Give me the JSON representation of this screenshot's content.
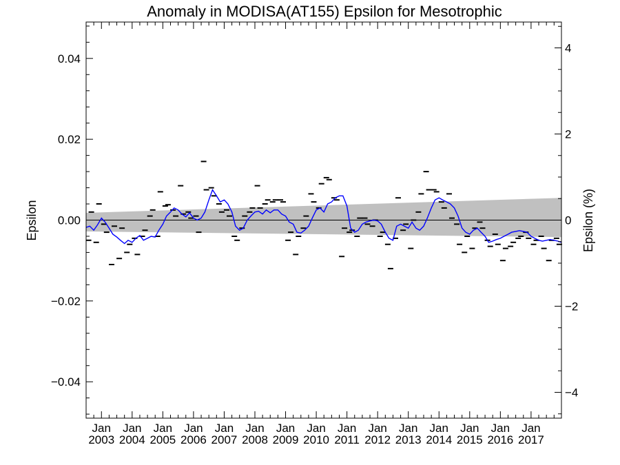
{
  "chart_data": {
    "type": "line",
    "title": "Anomaly in MODISA(AT155) Epsilon for Mesotrophic",
    "ylabel": "Epsilon",
    "ylabel_right": "Epsilon (%)",
    "xlabel": "",
    "ylim": [
      -0.049,
      0.049
    ],
    "ylim_right": [
      -4.6,
      4.6
    ],
    "xlim": [
      2002.5,
      2017.99
    ],
    "yticks": [
      -0.04,
      -0.02,
      0.0,
      0.02,
      0.04
    ],
    "ytick_labels": [
      "−0.04",
      "−0.02",
      "0.00",
      "0.02",
      "0.04"
    ],
    "yticks_right": [
      -4,
      -2,
      0,
      2,
      4
    ],
    "ytick_right_labels": [
      "−4",
      "−2",
      "0",
      "2",
      "4"
    ],
    "xticks": [
      {
        "x": 2003.0,
        "month": "Jan",
        "year": "2003"
      },
      {
        "x": 2004.0,
        "month": "Jan",
        "year": "2004"
      },
      {
        "x": 2005.0,
        "month": "Jan",
        "year": "2005"
      },
      {
        "x": 2006.0,
        "month": "Jan",
        "year": "2006"
      },
      {
        "x": 2007.0,
        "month": "Jan",
        "year": "2007"
      },
      {
        "x": 2008.0,
        "month": "Jan",
        "year": "2008"
      },
      {
        "x": 2009.0,
        "month": "Jan",
        "year": "2009"
      },
      {
        "x": 2010.0,
        "month": "Jan",
        "year": "2010"
      },
      {
        "x": 2011.0,
        "month": "Jan",
        "year": "2011"
      },
      {
        "x": 2012.0,
        "month": "Jan",
        "year": "2012"
      },
      {
        "x": 2013.0,
        "month": "Jan",
        "year": "2013"
      },
      {
        "x": 2014.0,
        "month": "Jan",
        "year": "2014"
      },
      {
        "x": 2015.0,
        "month": "Jan",
        "year": "2015"
      },
      {
        "x": 2016.0,
        "month": "Jan",
        "year": "2016"
      },
      {
        "x": 2017.0,
        "month": "Jan",
        "year": "2017"
      }
    ],
    "grid": false,
    "zero_line": 0,
    "band": {
      "x": [
        2002.5,
        2017.99
      ],
      "lower": [
        -0.0028,
        -0.0042
      ],
      "upper": [
        0.0018,
        0.0055
      ],
      "color": "#c0c0c0"
    },
    "series": [
      {
        "style": "line",
        "color": "#0000ff",
        "x": [
          2002.5,
          2002.62,
          2002.75,
          2002.87,
          2003.0,
          2003.12,
          2003.25,
          2003.37,
          2003.5,
          2003.62,
          2003.75,
          2003.87,
          2004.0,
          2004.12,
          2004.25,
          2004.37,
          2004.5,
          2004.62,
          2004.75,
          2004.87,
          2005.0,
          2005.12,
          2005.25,
          2005.37,
          2005.5,
          2005.62,
          2005.75,
          2005.87,
          2006.0,
          2006.12,
          2006.25,
          2006.37,
          2006.5,
          2006.62,
          2006.75,
          2006.87,
          2007.0,
          2007.12,
          2007.25,
          2007.37,
          2007.5,
          2007.62,
          2007.75,
          2007.87,
          2008.0,
          2008.12,
          2008.25,
          2008.37,
          2008.5,
          2008.62,
          2008.75,
          2008.87,
          2009.0,
          2009.12,
          2009.25,
          2009.37,
          2009.5,
          2009.62,
          2009.75,
          2009.87,
          2010.0,
          2010.12,
          2010.25,
          2010.37,
          2010.5,
          2010.62,
          2010.75,
          2010.87,
          2011.0,
          2011.12,
          2011.25,
          2011.37,
          2011.5,
          2011.62,
          2011.75,
          2011.87,
          2012.0,
          2012.12,
          2012.25,
          2012.37,
          2012.5,
          2012.62,
          2012.75,
          2012.87,
          2013.0,
          2013.12,
          2013.25,
          2013.37,
          2013.5,
          2013.62,
          2013.75,
          2013.87,
          2014.0,
          2014.12,
          2014.25,
          2014.37,
          2014.5,
          2014.62,
          2014.75,
          2014.87,
          2015.0,
          2015.12,
          2015.25,
          2015.37,
          2015.5,
          2015.62,
          2015.75,
          2015.87,
          2016.0,
          2016.12,
          2016.25,
          2016.37,
          2016.5,
          2016.62,
          2016.75,
          2016.87,
          2017.0,
          2017.12,
          2017.25,
          2017.37,
          2017.5,
          2017.62,
          2017.75,
          2017.87,
          2017.99
        ],
        "y": [
          -0.0018,
          -0.0015,
          -0.0025,
          -0.0012,
          0.0005,
          -0.0005,
          -0.002,
          -0.0035,
          -0.0042,
          -0.005,
          -0.0058,
          -0.005,
          -0.0055,
          -0.0045,
          -0.0038,
          -0.005,
          -0.0045,
          -0.004,
          -0.0042,
          -0.0025,
          -0.001,
          0.001,
          0.002,
          0.003,
          0.0025,
          0.0015,
          0.0008,
          0.0018,
          0.0005,
          0.0,
          0.0005,
          0.002,
          0.005,
          0.0075,
          0.006,
          0.0045,
          0.005,
          0.004,
          0.002,
          -0.0015,
          -0.0025,
          -0.002,
          0.0,
          0.001,
          0.002,
          0.0022,
          0.0015,
          0.0025,
          0.0018,
          0.0025,
          0.0025,
          0.0015,
          0.001,
          -0.0005,
          -0.001,
          -0.003,
          -0.0032,
          -0.0025,
          -0.0015,
          0.0005,
          0.0025,
          0.003,
          0.002,
          0.004,
          0.0045,
          0.0055,
          0.006,
          0.006,
          0.0035,
          -0.002,
          -0.003,
          -0.0025,
          -0.001,
          -0.0005,
          -0.0002,
          0.0,
          -0.0002,
          -0.001,
          -0.003,
          -0.0045,
          -0.005,
          -0.0015,
          -0.001,
          -0.0015,
          -0.002,
          -0.0005,
          -0.002,
          -0.0025,
          -0.0015,
          0.0005,
          0.003,
          0.005,
          0.0055,
          0.005,
          0.0045,
          0.004,
          0.003,
          0.001,
          -0.002,
          -0.003,
          -0.0035,
          -0.0025,
          -0.002,
          -0.003,
          -0.004,
          -0.0055,
          -0.0052,
          -0.0048,
          -0.0045,
          -0.004,
          -0.0035,
          -0.003,
          -0.0028,
          -0.0026,
          -0.0028,
          -0.003,
          -0.004,
          -0.0045,
          -0.005,
          -0.0052,
          -0.005,
          -0.0048,
          -0.005,
          -0.0052,
          -0.0055
        ]
      },
      {
        "style": "dash-markers",
        "color": "#000000",
        "x": [
          2002.58,
          2002.67,
          2002.83,
          2002.92,
          2003.08,
          2003.17,
          2003.33,
          2003.42,
          2003.58,
          2003.67,
          2003.83,
          2003.92,
          2004.08,
          2004.17,
          2004.33,
          2004.42,
          2004.58,
          2004.67,
          2004.83,
          2004.92,
          2005.08,
          2005.17,
          2005.33,
          2005.42,
          2005.58,
          2005.67,
          2005.83,
          2005.92,
          2006.08,
          2006.17,
          2006.33,
          2006.42,
          2006.58,
          2006.67,
          2006.83,
          2006.92,
          2007.08,
          2007.17,
          2007.33,
          2007.42,
          2007.58,
          2007.67,
          2007.83,
          2007.92,
          2008.08,
          2008.17,
          2008.33,
          2008.42,
          2008.58,
          2008.67,
          2008.83,
          2008.92,
          2009.08,
          2009.17,
          2009.33,
          2009.42,
          2009.58,
          2009.67,
          2009.83,
          2009.92,
          2010.08,
          2010.17,
          2010.33,
          2010.42,
          2010.58,
          2010.67,
          2010.83,
          2010.92,
          2011.08,
          2011.17,
          2011.33,
          2011.42,
          2011.58,
          2011.67,
          2011.83,
          2011.92,
          2012.08,
          2012.17,
          2012.33,
          2012.42,
          2012.58,
          2012.67,
          2012.83,
          2012.92,
          2013.08,
          2013.17,
          2013.33,
          2013.42,
          2013.58,
          2013.67,
          2013.83,
          2013.92,
          2014.08,
          2014.17,
          2014.33,
          2014.42,
          2014.58,
          2014.67,
          2014.83,
          2014.92,
          2015.08,
          2015.17,
          2015.33,
          2015.42,
          2015.58,
          2015.67,
          2015.83,
          2015.92,
          2016.08,
          2016.17,
          2016.33,
          2016.42,
          2016.58,
          2016.67,
          2016.83,
          2016.92,
          2017.08,
          2017.17,
          2017.33,
          2017.42,
          2017.58,
          2017.67,
          2017.83,
          2017.92
        ],
        "y": [
          -0.005,
          0.002,
          -0.0055,
          0.004,
          -0.001,
          -0.003,
          -0.011,
          -0.0015,
          -0.0095,
          -0.002,
          -0.008,
          -0.006,
          -0.0045,
          -0.0085,
          -0.004,
          -0.0025,
          0.001,
          0.0025,
          -0.004,
          0.007,
          0.0035,
          0.0038,
          0.0025,
          0.001,
          0.0085,
          0.0015,
          0.002,
          0.0005,
          0.001,
          -0.003,
          0.0145,
          0.0075,
          0.008,
          0.006,
          0.004,
          0.002,
          0.0025,
          0.001,
          -0.004,
          -0.005,
          -0.002,
          0.001,
          0.002,
          0.003,
          0.0085,
          0.003,
          0.004,
          0.005,
          0.0045,
          0.005,
          0.005,
          0.0045,
          -0.005,
          -0.003,
          -0.0085,
          -0.004,
          -0.002,
          0.001,
          0.0065,
          0.0045,
          0.003,
          0.009,
          0.0105,
          0.01,
          0.0055,
          0.005,
          -0.009,
          -0.002,
          -0.003,
          -0.0025,
          -0.004,
          0.0005,
          0.0005,
          -0.001,
          -0.0015,
          0.0,
          -0.004,
          -0.003,
          -0.006,
          -0.012,
          -0.0045,
          0.0055,
          -0.0025,
          -0.001,
          -0.007,
          0.0,
          0.002,
          0.0065,
          0.012,
          0.0075,
          0.0075,
          0.007,
          0.0045,
          0.003,
          0.0065,
          0.0005,
          -0.001,
          -0.006,
          -0.008,
          -0.004,
          -0.007,
          -0.002,
          -0.0005,
          -0.002,
          -0.005,
          -0.0065,
          -0.0035,
          -0.006,
          -0.01,
          -0.007,
          -0.0065,
          -0.0055,
          -0.0045,
          -0.004,
          -0.003,
          -0.0045,
          -0.006,
          -0.005,
          -0.004,
          -0.007,
          -0.01,
          -0.005,
          -0.0045,
          -0.006
        ]
      }
    ]
  }
}
